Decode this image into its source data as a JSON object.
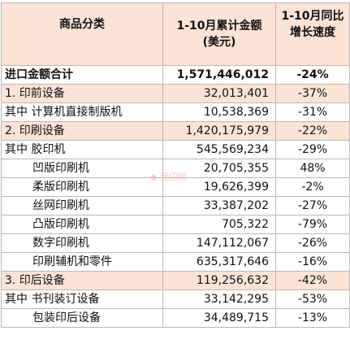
{
  "header": {
    "category": "商品分类",
    "amount": "1-10月累计金额\n(美元)",
    "growth": "1-10月同比  增长速度"
  },
  "rows": [
    {
      "name": "进口金额合计",
      "amount": "1,571,446,012",
      "growth": "-24%",
      "style": "bold",
      "indent": false
    },
    {
      "name": "1. 印前设备",
      "amount": "32,013,401",
      "growth": "-37%",
      "style": "hl",
      "indent": false
    },
    {
      "name": "其中 计算机直接制版机",
      "amount": "10,538,369",
      "growth": "-31%",
      "style": "",
      "indent": false
    },
    {
      "name": "2. 印刷设备",
      "amount": "1,420,175,979",
      "growth": "-22%",
      "style": "hl",
      "indent": false
    },
    {
      "name": "其中 胶印机",
      "amount": "545,569,234",
      "growth": "-29%",
      "style": "",
      "indent": false
    },
    {
      "name": "凹版印刷机",
      "amount": "20,705,355",
      "growth": "48%",
      "style": "",
      "indent": true
    },
    {
      "name": "柔版印刷机",
      "amount": "19,626,399",
      "growth": "-2%",
      "style": "",
      "indent": true
    },
    {
      "name": "丝网印刷机",
      "amount": "33,387,202",
      "growth": "-27%",
      "style": "",
      "indent": true
    },
    {
      "name": "凸版印刷机",
      "amount": "705,322",
      "growth": "-79%",
      "style": "",
      "indent": true
    },
    {
      "name": "数字印刷机",
      "amount": "147,112,067",
      "growth": "-26%",
      "style": "",
      "indent": true
    },
    {
      "name": "印刷辅机和零件",
      "amount": "635,317,646",
      "growth": "-16%",
      "style": "",
      "indent": true
    },
    {
      "name": "3.  印后设备",
      "amount": "119,256,632",
      "growth": "-42%",
      "style": "hl",
      "indent": false
    },
    {
      "name": "其中 书刊装订设备",
      "amount": "33,142,295",
      "growth": "-53%",
      "style": "",
      "indent": false
    },
    {
      "name": "包装印后设备",
      "amount": "34,489,715",
      "growth": "-13%",
      "style": "",
      "indent": true
    }
  ]
}
